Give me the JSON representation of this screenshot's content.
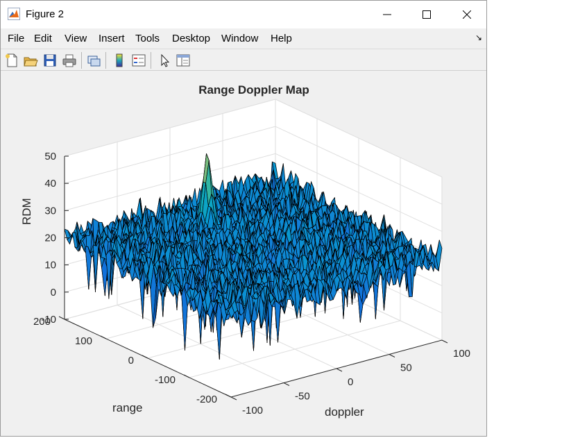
{
  "window": {
    "title": "Figure 2",
    "minimize_glyph": "—",
    "maximize_glyph": "☐",
    "close_glyph": "✕"
  },
  "menu": {
    "items": [
      "File",
      "Edit",
      "View",
      "Insert",
      "Tools",
      "Desktop",
      "Window",
      "Help"
    ],
    "dock_glyph": "↘"
  },
  "toolbar": {
    "buttons": [
      "new-figure-icon",
      "open-file-icon",
      "save-icon",
      "print-icon",
      "link-figure-icon",
      "colorbar-icon",
      "legend-icon",
      "pointer-icon",
      "property-editor-icon"
    ]
  },
  "chart_data": {
    "type": "surface",
    "title": "Range Doppler Map",
    "xlabel": "doppler",
    "ylabel": "range",
    "zlabel": "RDM",
    "x_ticks": [
      "-100",
      "-50",
      "0",
      "50",
      "100"
    ],
    "y_ticks": [
      "-200",
      "-100",
      "0",
      "100",
      "200"
    ],
    "z_ticks": [
      "-10",
      "0",
      "10",
      "20",
      "30",
      "40",
      "50"
    ],
    "xlim": [
      -100,
      100
    ],
    "ylim": [
      -200,
      200
    ],
    "zlim": [
      -10,
      50
    ],
    "noise_floor_mean": 20,
    "peak": {
      "doppler": 0,
      "range": 110,
      "value": 47
    },
    "grid": true,
    "colormap": "parula"
  }
}
